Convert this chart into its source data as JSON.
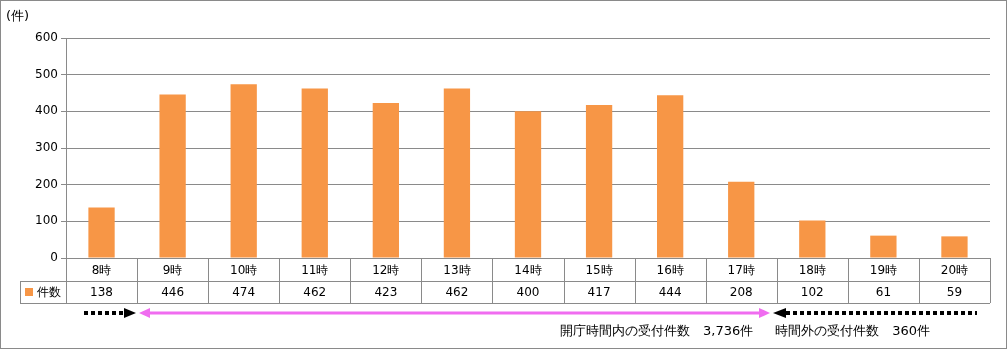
{
  "chart_data": {
    "type": "bar",
    "ylabel": "(件)",
    "categories": [
      "8時",
      "9時",
      "10時",
      "11時",
      "12時",
      "13時",
      "14時",
      "15時",
      "16時",
      "17時",
      "18時",
      "19時",
      "20時"
    ],
    "series": [
      {
        "name": "件数",
        "color": "#f79646",
        "values": [
          138,
          446,
          474,
          462,
          423,
          462,
          400,
          417,
          444,
          208,
          102,
          61,
          59
        ]
      }
    ],
    "ylim": [
      0,
      600
    ],
    "yticks": [
      0,
      100,
      200,
      300,
      400,
      500,
      600
    ],
    "grid": "y",
    "data_labels": true,
    "annotations": [
      "開庁時間内の受付件数　3,736件",
      "時間外の受付件数　360件"
    ]
  }
}
